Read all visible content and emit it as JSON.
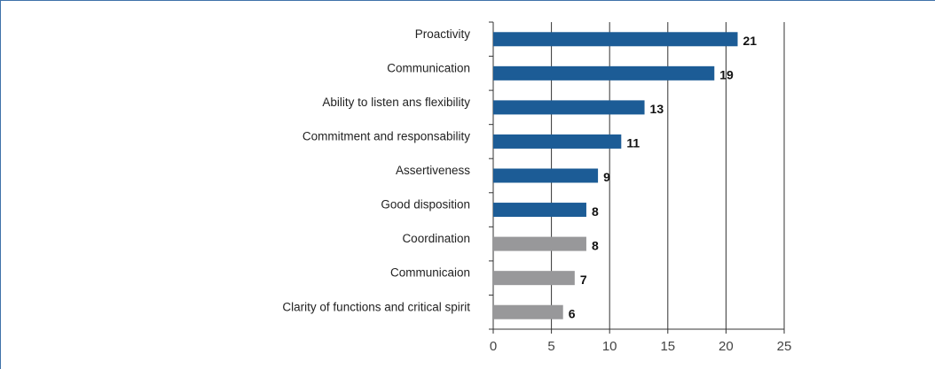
{
  "chart_data": {
    "type": "barh",
    "categories": [
      "Proactivity",
      "Communication",
      "Ability to listen ans flexibility",
      "Commitment and responsability",
      "Assertiveness",
      "Good disposition",
      "Coordination",
      "Communicaion",
      "Clarity of functions and critical spirit"
    ],
    "values": [
      21,
      19,
      13,
      11,
      9,
      8,
      8,
      7,
      6
    ],
    "colors": [
      "#1c5c96",
      "#1c5c96",
      "#1c5c96",
      "#1c5c96",
      "#1c5c96",
      "#1c5c96",
      "#98989a",
      "#98989a",
      "#98989a"
    ],
    "xlim": [
      0,
      25
    ],
    "xticks": [
      0,
      5,
      10,
      15,
      20,
      25
    ],
    "grid": true
  }
}
